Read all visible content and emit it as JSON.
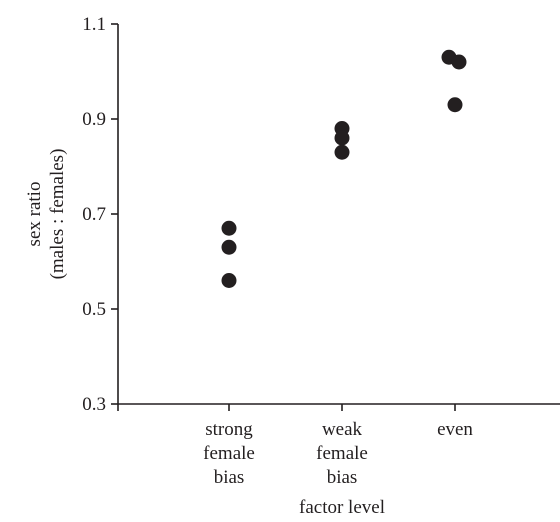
{
  "chart_data": {
    "type": "scatter",
    "title": "",
    "xlabel": "factor level",
    "ylabel": [
      "sex ratio",
      "(males : females)"
    ],
    "ylim": [
      0.3,
      1.1
    ],
    "yticks": [
      "0.3",
      "0.5",
      "0.7",
      "0.9",
      "1.1"
    ],
    "categories": [
      [
        "strong",
        "female",
        "bias"
      ],
      [
        "weak",
        "female",
        "bias"
      ],
      [
        "even"
      ]
    ],
    "series": [
      {
        "points": [
          {
            "category": 0,
            "offset": 0.0,
            "y": 0.67
          },
          {
            "category": 0,
            "offset": 0.0,
            "y": 0.63
          },
          {
            "category": 0,
            "offset": 0.0,
            "y": 0.56
          },
          {
            "category": 1,
            "offset": 0.0,
            "y": 0.88
          },
          {
            "category": 1,
            "offset": 0.0,
            "y": 0.86
          },
          {
            "category": 1,
            "offset": 0.0,
            "y": 0.83
          },
          {
            "category": 2,
            "offset": -0.06,
            "y": 1.03
          },
          {
            "category": 2,
            "offset": 0.04,
            "y": 1.02
          },
          {
            "category": 2,
            "offset": 0.0,
            "y": 0.93
          }
        ]
      }
    ],
    "grid": false,
    "legend": "none",
    "colors": {
      "ink": "#231f20"
    }
  }
}
